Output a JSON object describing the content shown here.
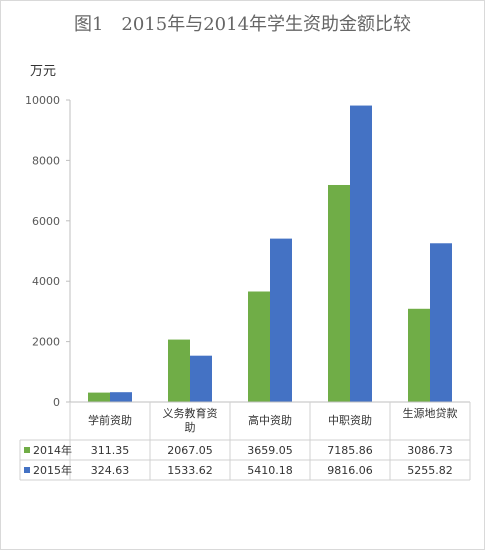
{
  "chart_data": {
    "type": "bar",
    "title": "图1　2015年与2014年学生资助金额比较",
    "ylabel": "万元",
    "ylim": [
      0,
      10000
    ],
    "yticks": [
      0,
      2000,
      4000,
      6000,
      8000,
      10000
    ],
    "categories": [
      "学前资助",
      "义务教育资助",
      "高中资助",
      "中职资助",
      "生源地贷款"
    ],
    "series": [
      {
        "name": "2014年",
        "color": "#70ad47",
        "values": [
          311.35,
          2067.05,
          3659.05,
          7185.86,
          3086.73
        ]
      },
      {
        "name": "2015年",
        "color": "#4472c4",
        "values": [
          324.63,
          1533.62,
          5410.18,
          9816.06,
          5255.82
        ]
      }
    ],
    "table": {
      "rows": [
        [
          "311.35",
          "2067.05",
          "3659.05",
          "7185.86",
          "3086.73"
        ],
        [
          "324.63",
          "1533.62",
          "5410.18",
          "9816.06",
          "5255.82"
        ]
      ]
    },
    "grid": false,
    "legend": "data-table"
  }
}
